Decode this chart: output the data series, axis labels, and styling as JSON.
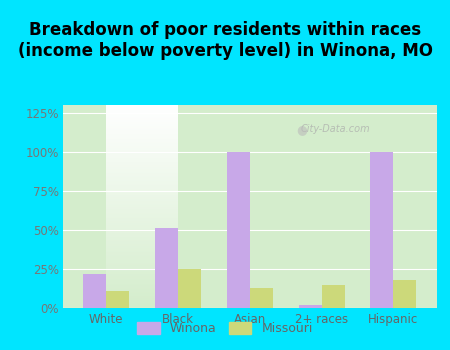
{
  "title": "Breakdown of poor residents within races\n(income below poverty level) in Winona, MO",
  "categories": [
    "White",
    "Black",
    "Asian",
    "2+ races",
    "Hispanic"
  ],
  "winona_values": [
    22,
    51,
    100,
    2,
    100
  ],
  "missouri_values": [
    11,
    25,
    13,
    15,
    18
  ],
  "winona_color": "#c8a8e8",
  "missouri_color": "#ccd97a",
  "background_outer": "#00e5ff",
  "background_inner_top": "#ffffff",
  "background_inner_bottom": "#d4edcc",
  "ylim": [
    0,
    130
  ],
  "yticks": [
    0,
    25,
    50,
    75,
    100,
    125
  ],
  "ytick_labels": [
    "0%",
    "25%",
    "50%",
    "75%",
    "100%",
    "125%"
  ],
  "bar_width": 0.32,
  "title_fontsize": 12,
  "legend_labels": [
    "Winona",
    "Missouri"
  ],
  "watermark": "City-Data.com",
  "tick_color": "#777777",
  "label_color": "#666666"
}
